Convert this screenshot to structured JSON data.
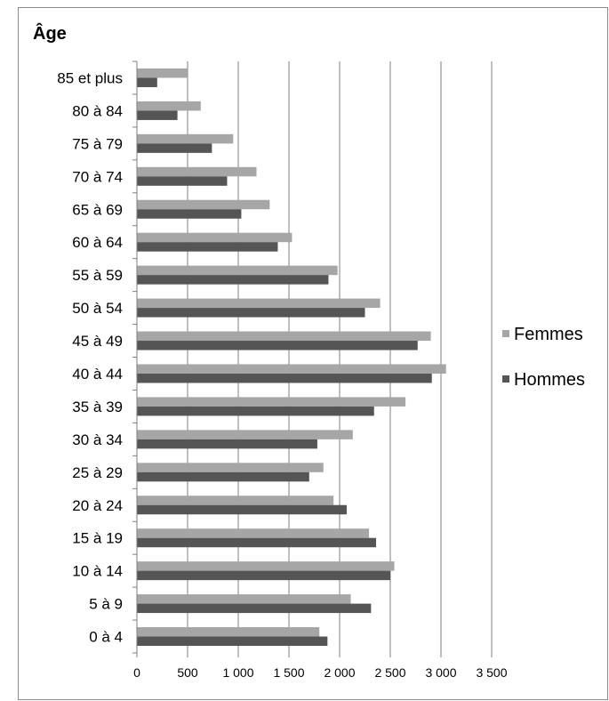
{
  "chart_data": {
    "type": "bar",
    "orientation": "horizontal",
    "title": "Âge",
    "xlabel": "",
    "ylabel": "",
    "categories": [
      "0 à 4",
      "5 à 9",
      "10 à 14",
      "15 à 19",
      "20 à 24",
      "25 à 29",
      "30 à 34",
      "35 à 39",
      "40 à 44",
      "45 à 49",
      "50 à 54",
      "55 à 59",
      "60 à 64",
      "65 à 69",
      "70 à 74",
      "75 à 79",
      "80 à 84",
      "85 et plus"
    ],
    "series": [
      {
        "name": "Femmes",
        "color": "#a6a6a6",
        "values": [
          1800,
          2110,
          2540,
          2290,
          1940,
          1840,
          2130,
          2650,
          3050,
          2900,
          2400,
          1980,
          1530,
          1310,
          1180,
          950,
          630,
          500
        ]
      },
      {
        "name": "Hommes",
        "color": "#555555",
        "values": [
          1880,
          2310,
          2500,
          2360,
          2070,
          1700,
          1780,
          2340,
          2910,
          2770,
          2250,
          1890,
          1390,
          1030,
          890,
          740,
          400,
          200
        ]
      }
    ],
    "xlim": [
      0,
      3500
    ],
    "xticks": [
      0,
      500,
      1000,
      1500,
      2000,
      2500,
      3000,
      3500
    ],
    "xtick_labels": [
      "0",
      "500",
      "1 000",
      "1 500",
      "2 000",
      "2 500",
      "3 000",
      "3 500"
    ],
    "grid": "vertical",
    "legend_position": "right"
  }
}
